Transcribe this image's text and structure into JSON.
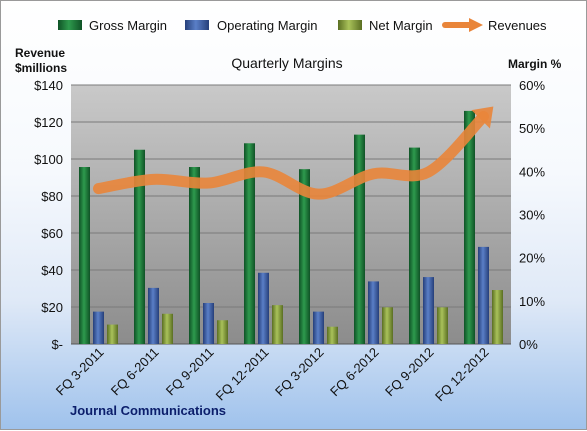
{
  "chart_data": {
    "type": "bar",
    "title": "Quarterly Margins",
    "y_left_label": [
      "Revenue",
      "$millions"
    ],
    "y_right_label": "Margin %",
    "footer": "Journal Communications",
    "categories": [
      "FQ 3-2011",
      "FQ 6-2011",
      "FQ 9-2011",
      "FQ 12-2011",
      "FQ 3-2012",
      "FQ 6-2012",
      "FQ 9-2012",
      "FQ 12-2012"
    ],
    "ylim_left": [
      0,
      140
    ],
    "ylim_right": [
      0,
      60
    ],
    "left_ticks": [
      "$-",
      "$20",
      "$40",
      "$60",
      "$80",
      "$100",
      "$120",
      "$140"
    ],
    "right_ticks": [
      "0%",
      "10%",
      "20%",
      "30%",
      "40%",
      "50%",
      "60%"
    ],
    "grid": true,
    "legend_position": "top",
    "series": [
      {
        "name": "Gross Margin",
        "axis": "right",
        "type": "bar",
        "color": "#1e7a3a",
        "values": [
          41,
          45,
          41,
          46.5,
          40.5,
          48.5,
          45.5,
          54
        ]
      },
      {
        "name": "Operating Margin",
        "axis": "right",
        "type": "bar",
        "color": "#3b5ea8",
        "values": [
          7.5,
          13,
          9.5,
          16.5,
          7.5,
          14.5,
          15.5,
          22.5
        ]
      },
      {
        "name": "Net Margin",
        "axis": "right",
        "type": "bar",
        "color": "#7f9a3a",
        "values": [
          4.5,
          7,
          5.5,
          9,
          4,
          8.5,
          8.5,
          12.5
        ]
      },
      {
        "name": "Revenues",
        "axis": "left",
        "type": "line",
        "color": "#e9853a",
        "values": [
          84,
          89,
          87,
          93,
          81,
          92,
          93,
          123
        ]
      }
    ]
  }
}
